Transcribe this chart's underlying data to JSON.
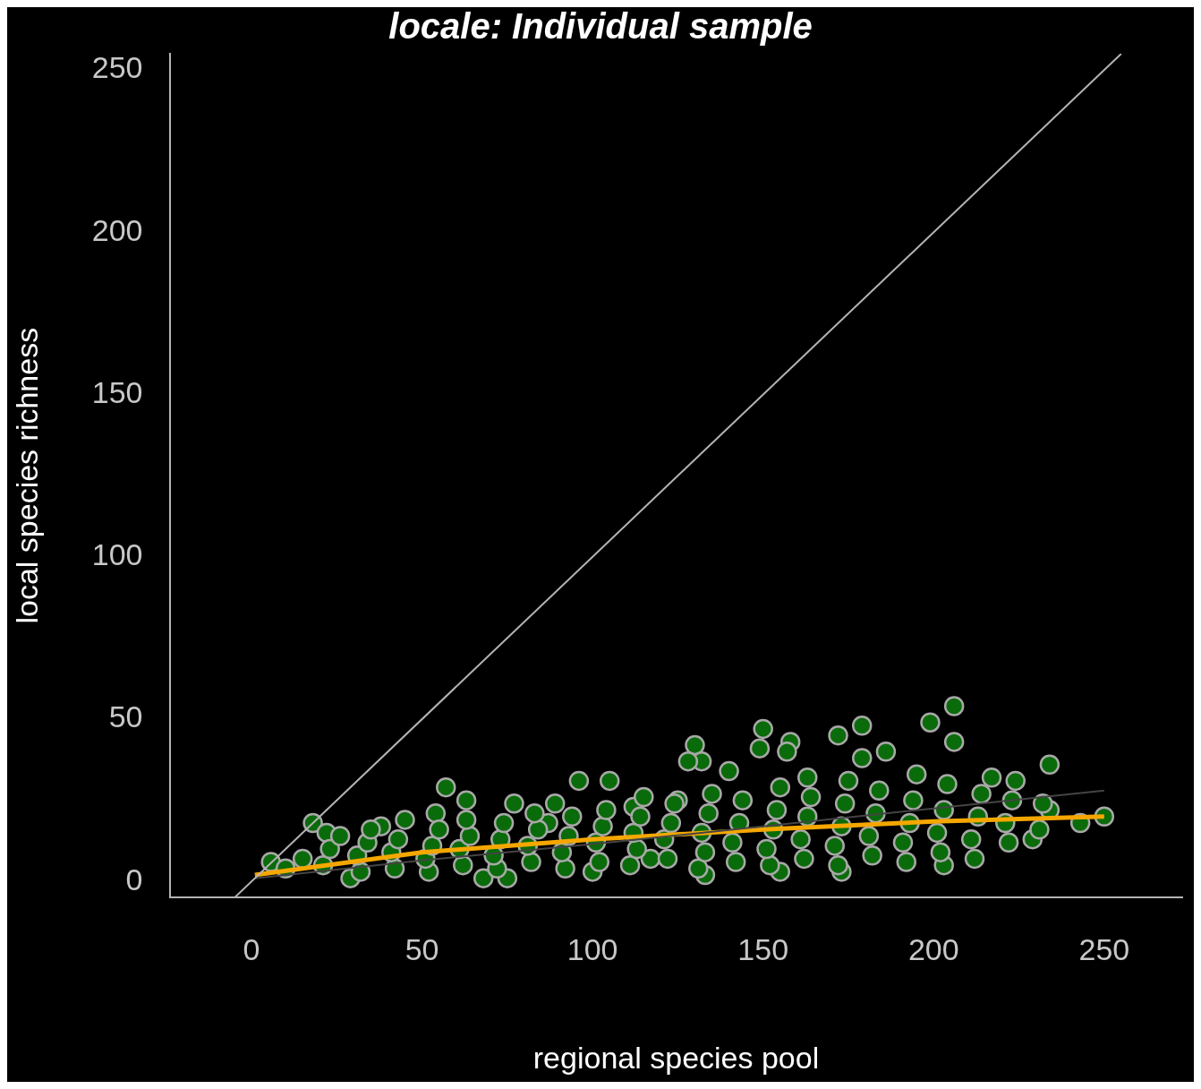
{
  "chart_data": {
    "type": "scatter",
    "title": "locale: Individual sample",
    "xlabel": "regional species pool",
    "ylabel": "local species richness",
    "xlim": [
      -24,
      273
    ],
    "ylim": [
      -5,
      255
    ],
    "xticks": [
      0,
      50,
      100,
      150,
      200,
      250
    ],
    "yticks": [
      0,
      50,
      100,
      150,
      200,
      250
    ],
    "grid": false,
    "legend": false,
    "series": [
      {
        "type": "line",
        "color": "#b4b4b4",
        "marker": "none",
        "x": [
          -5,
          255
        ],
        "values": [
          -5,
          255
        ]
      },
      {
        "type": "scatter",
        "color": "#0a6b0a",
        "marker": "circle",
        "x": [
          5.7,
          10,
          18,
          22,
          15,
          29,
          38,
          45,
          54,
          57,
          63,
          68,
          77,
          75,
          87,
          89,
          96,
          105,
          100,
          112,
          117,
          125,
          130,
          132,
          128,
          133,
          140,
          150,
          149,
          158,
          157,
          155,
          163,
          172,
          179,
          179,
          173,
          186,
          199,
          206,
          206,
          203,
          217,
          224,
          234,
          229,
          250,
          243,
          234,
          21,
          23,
          26,
          32,
          31,
          34,
          35,
          42,
          41,
          43,
          52,
          51,
          53,
          55,
          62,
          61,
          64,
          63,
          72,
          71,
          73,
          74,
          82,
          81,
          84,
          83,
          92,
          91,
          93,
          94,
          102,
          101,
          103,
          104,
          111,
          113,
          112,
          114,
          115,
          122,
          121,
          123,
          124,
          131,
          133,
          132,
          134,
          135,
          142,
          141,
          143,
          144,
          152,
          151,
          153,
          154,
          155,
          162,
          161,
          163,
          164,
          172,
          171,
          173,
          174,
          175,
          182,
          181,
          183,
          184,
          192,
          191,
          193,
          194,
          195,
          202,
          201,
          203,
          204,
          212,
          211,
          213,
          214,
          222,
          221,
          223,
          231,
          232
        ],
        "values": [
          6,
          4,
          18,
          15,
          7,
          1,
          17,
          19,
          21,
          29,
          25,
          1,
          24,
          1,
          18,
          24,
          31,
          31,
          3,
          23,
          7,
          25,
          42,
          37,
          37,
          2,
          34,
          47,
          41,
          43,
          40,
          3,
          32,
          45,
          48,
          38,
          3,
          40,
          49,
          54,
          43,
          5,
          32,
          31,
          36,
          13,
          20,
          18,
          22,
          5,
          10,
          14,
          3,
          8,
          12,
          16,
          4,
          9,
          13,
          3,
          7,
          11,
          16,
          5,
          10,
          14,
          19,
          4,
          8,
          13,
          18,
          6,
          11,
          16,
          21,
          4,
          9,
          14,
          20,
          6,
          12,
          17,
          22,
          5,
          10,
          15,
          20,
          26,
          7,
          13,
          18,
          24,
          4,
          9,
          15,
          21,
          27,
          6,
          12,
          18,
          25,
          5,
          10,
          16,
          22,
          29,
          7,
          13,
          20,
          26,
          5,
          11,
          17,
          24,
          31,
          8,
          14,
          21,
          28,
          6,
          12,
          18,
          25,
          33,
          9,
          15,
          22,
          30,
          7,
          13,
          20,
          27,
          12,
          18,
          25,
          16,
          24
        ]
      },
      {
        "type": "line",
        "color": "#444444",
        "marker": "none",
        "x": [
          1,
          50,
          100,
          150,
          200,
          250
        ],
        "values": [
          1,
          6.5,
          11.5,
          17,
          22.5,
          28
        ]
      },
      {
        "type": "line",
        "color": "#f5a700",
        "marker": "none",
        "x": [
          1,
          50,
          100,
          150,
          200,
          250
        ],
        "values": [
          2,
          9,
          13,
          16,
          18.5,
          20
        ]
      }
    ]
  }
}
